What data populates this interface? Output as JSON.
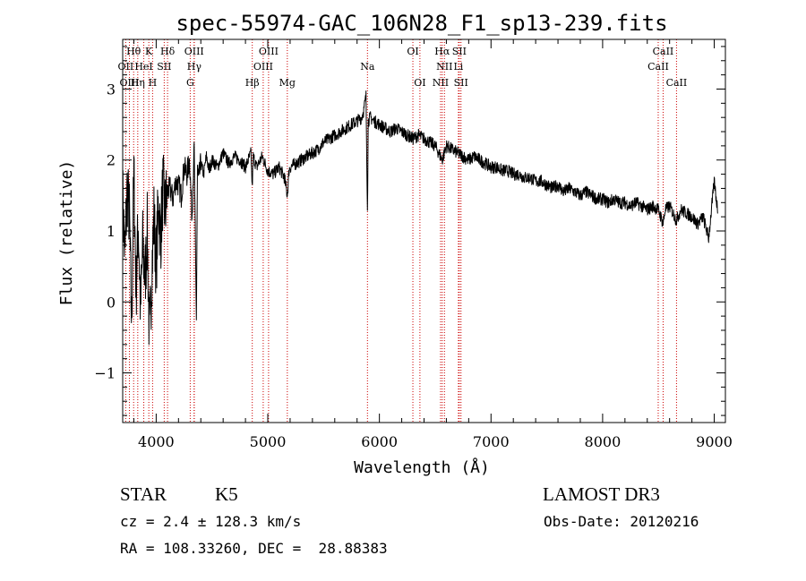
{
  "chart_data": {
    "type": "line",
    "title": "spec-55974-GAC_106N28_F1_sp13-239.fits",
    "xlabel": "Wavelength (Å)",
    "ylabel": "Flux (relative)",
    "xlim": [
      3700,
      9100
    ],
    "ylim": [
      -1.7,
      3.7
    ],
    "xticks": [
      4000,
      5000,
      6000,
      7000,
      8000,
      9000
    ],
    "xtick_labels": [
      "4000",
      "5000",
      "6000",
      "7000",
      "8000",
      "9000"
    ],
    "yticks": [
      -1,
      0,
      1,
      2,
      3
    ],
    "ytick_labels": [
      "−1",
      "0",
      "1",
      "2",
      "3"
    ],
    "series": [
      {
        "name": "flux",
        "x": [
          3700,
          3720,
          3740,
          3760,
          3780,
          3800,
          3820,
          3840,
          3860,
          3880,
          3900,
          3920,
          3940,
          3960,
          3980,
          4000,
          4020,
          4040,
          4060,
          4080,
          4100,
          4125,
          4150,
          4175,
          4200,
          4225,
          4250,
          4275,
          4300,
          4320,
          4340,
          4360,
          4370,
          4380,
          4400,
          4425,
          4450,
          4475,
          4500,
          4550,
          4600,
          4650,
          4700,
          4750,
          4800,
          4850,
          4860,
          4870,
          4900,
          4950,
          5000,
          5050,
          5100,
          5150,
          5175,
          5190,
          5200,
          5250,
          5300,
          5350,
          5400,
          5450,
          5500,
          5550,
          5600,
          5650,
          5700,
          5750,
          5800,
          5840,
          5860,
          5880,
          5893,
          5900,
          5920,
          5950,
          6000,
          6050,
          6100,
          6150,
          6200,
          6250,
          6300,
          6350,
          6400,
          6450,
          6500,
          6563,
          6600,
          6650,
          6700,
          6750,
          6800,
          6850,
          6900,
          6950,
          7000,
          7050,
          7100,
          7150,
          7200,
          7250,
          7300,
          7350,
          7400,
          7450,
          7500,
          7550,
          7600,
          7650,
          7700,
          7750,
          7800,
          7850,
          7900,
          7950,
          8000,
          8050,
          8100,
          8150,
          8200,
          8250,
          8300,
          8350,
          8400,
          8450,
          8500,
          8542,
          8560,
          8600,
          8662,
          8700,
          8750,
          8800,
          8850,
          8900,
          8950,
          9000,
          9030
        ],
        "values": [
          1.5,
          0.6,
          1.6,
          1.2,
          -0.3,
          1.8,
          0.2,
          1.1,
          -0.1,
          0.8,
          0.3,
          1.0,
          -0.6,
          0.4,
          1.2,
          0.5,
          1.4,
          0.9,
          1.6,
          1.3,
          1.55,
          1.6,
          1.45,
          1.7,
          1.65,
          1.5,
          1.9,
          1.8,
          2.0,
          1.2,
          2.15,
          -0.2,
          1.9,
          1.7,
          1.95,
          1.8,
          2.05,
          1.85,
          2.0,
          1.9,
          2.1,
          1.95,
          2.05,
          2.0,
          1.9,
          2.1,
          1.6,
          2.05,
          1.9,
          2.05,
          1.85,
          1.8,
          1.9,
          1.75,
          1.5,
          1.85,
          1.9,
          1.95,
          2.0,
          2.05,
          2.1,
          2.15,
          2.25,
          2.3,
          2.35,
          2.4,
          2.45,
          2.5,
          2.55,
          2.6,
          2.7,
          2.9,
          1.3,
          2.55,
          2.6,
          2.55,
          2.5,
          2.45,
          2.4,
          2.45,
          2.4,
          2.35,
          2.3,
          2.35,
          2.3,
          2.25,
          2.2,
          2.0,
          2.2,
          2.15,
          2.1,
          2.05,
          2.0,
          2.05,
          2.0,
          1.95,
          1.9,
          1.9,
          1.85,
          1.85,
          1.8,
          1.8,
          1.75,
          1.75,
          1.7,
          1.7,
          1.65,
          1.6,
          1.65,
          1.55,
          1.6,
          1.55,
          1.5,
          1.55,
          1.5,
          1.45,
          1.45,
          1.4,
          1.45,
          1.4,
          1.4,
          1.35,
          1.4,
          1.35,
          1.3,
          1.35,
          1.3,
          1.1,
          1.3,
          1.35,
          1.15,
          1.3,
          1.25,
          1.2,
          1.1,
          1.2,
          0.9,
          1.7,
          1.3
        ]
      }
    ],
    "line_color": "#000000",
    "marker_color": "#cc0000",
    "spectral_lines": [
      {
        "label": "Hθ",
        "wavelength": 3798,
        "row": 1
      },
      {
        "label": "OII",
        "wavelength": 3727,
        "row": 2
      },
      {
        "label": "OIII",
        "wavelength": 3760,
        "row": 3
      },
      {
        "label": "Hη",
        "wavelength": 3835,
        "row": 3
      },
      {
        "label": "HeI",
        "wavelength": 3889,
        "row": 2
      },
      {
        "label": "K",
        "wavelength": 3934,
        "row": 1
      },
      {
        "label": "H",
        "wavelength": 3968,
        "row": 3
      },
      {
        "label": "SII",
        "wavelength": 4072,
        "row": 2
      },
      {
        "label": "Hδ",
        "wavelength": 4102,
        "row": 1
      },
      {
        "label": "OIII",
        "wavelength": 4340,
        "row": 1
      },
      {
        "label": "Hγ",
        "wavelength": 4341,
        "row": 2
      },
      {
        "label": "G",
        "wavelength": 4305,
        "row": 3
      },
      {
        "label": "Hβ",
        "wavelength": 4861,
        "row": 3
      },
      {
        "label": "OIII",
        "wavelength": 5007,
        "row": 1
      },
      {
        "label": "OIII",
        "wavelength": 4959,
        "row": 2
      },
      {
        "label": "Mg",
        "wavelength": 5175,
        "row": 3
      },
      {
        "label": "Na",
        "wavelength": 5893,
        "row": 2
      },
      {
        "label": "OI",
        "wavelength": 6300,
        "row": 1
      },
      {
        "label": "OI",
        "wavelength": 6363,
        "row": 3
      },
      {
        "label": "Hα",
        "wavelength": 6563,
        "row": 1
      },
      {
        "label": "NII",
        "wavelength": 6583,
        "row": 2
      },
      {
        "label": "NII",
        "wavelength": 6548,
        "row": 3
      },
      {
        "label": "SII",
        "wavelength": 6716,
        "row": 1
      },
      {
        "label": "Li",
        "wavelength": 6708,
        "row": 2
      },
      {
        "label": "SII",
        "wavelength": 6731,
        "row": 3
      },
      {
        "label": "CaII",
        "wavelength": 8542,
        "row": 1
      },
      {
        "label": "CaII",
        "wavelength": 8498,
        "row": 2
      },
      {
        "label": "CaII",
        "wavelength": 8662,
        "row": 3
      }
    ]
  },
  "info": {
    "object_class": "STAR",
    "subclass": "K5",
    "survey": "LAMOST DR3",
    "cz": "cz = 2.4 ± 128.3 km/s",
    "obs_date": "Obs-Date: 20120216",
    "coords": "RA = 108.33260, DEC =  28.88383"
  }
}
